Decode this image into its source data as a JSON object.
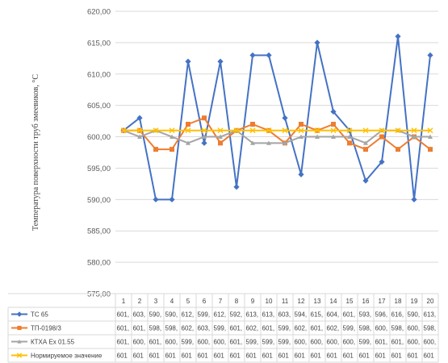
{
  "chart_data": {
    "type": "line",
    "title": "",
    "xlabel": "",
    "ylabel": "Температура поверхности труб змеевиков, °С",
    "ylim": [
      575,
      620
    ],
    "yticks": [
      "575,00",
      "580,00",
      "585,00",
      "590,00",
      "595,00",
      "600,00",
      "605,00",
      "610,00",
      "615,00",
      "620,00"
    ],
    "categories": [
      "1",
      "2",
      "3",
      "4",
      "5",
      "6",
      "7",
      "8",
      "9",
      "10",
      "11",
      "12",
      "13",
      "14",
      "15",
      "16",
      "17",
      "18",
      "19",
      "20"
    ],
    "grid": true,
    "legend": "data-table-left",
    "series": [
      {
        "name": "ТС 65",
        "color": "#4472c4",
        "marker": "diamond",
        "values": [
          601,
          603,
          590,
          590,
          612,
          599,
          612,
          592,
          613,
          613,
          603,
          594,
          615,
          604,
          601,
          593,
          596,
          616,
          590,
          613
        ],
        "table_labels": [
          "601,",
          "603,",
          "590,",
          "590,",
          "612,",
          "599,",
          "612,",
          "592,",
          "613,",
          "613,",
          "603,",
          "594,",
          "615,",
          "604,",
          "601,",
          "593,",
          "596,",
          "616,",
          "590,",
          "613,"
        ]
      },
      {
        "name": "ТП-0198/3",
        "color": "#ed7d31",
        "marker": "square",
        "values": [
          601,
          601,
          598,
          598,
          602,
          603,
          599,
          601,
          602,
          601,
          599,
          602,
          601,
          602,
          599,
          598,
          600,
          598,
          600,
          598
        ],
        "table_labels": [
          "601,",
          "601,",
          "598,",
          "598,",
          "602,",
          "603,",
          "599,",
          "601,",
          "602,",
          "601,",
          "599,",
          "602,",
          "601,",
          "602,",
          "599,",
          "598,",
          "600,",
          "598,",
          "600,",
          "598,"
        ]
      },
      {
        "name": "КТХА Ех 01.55",
        "color": "#a5a5a5",
        "marker": "triangle",
        "values": [
          601,
          600,
          601,
          600,
          599,
          600,
          600,
          601,
          599,
          599,
          599,
          600,
          600,
          600,
          600,
          599,
          601,
          601,
          600,
          600
        ],
        "table_labels": [
          "601,",
          "600,",
          "601,",
          "600,",
          "599,",
          "600,",
          "600,",
          "601,",
          "599,",
          "599,",
          "599,",
          "600,",
          "600,",
          "600,",
          "600,",
          "599,",
          "601,",
          "601,",
          "600,",
          "600,"
        ]
      },
      {
        "name": "Нормируемое значение",
        "color": "#ffc000",
        "marker": "cross",
        "values": [
          601,
          601,
          601,
          601,
          601,
          601,
          601,
          601,
          601,
          601,
          601,
          601,
          601,
          601,
          601,
          601,
          601,
          601,
          601,
          601
        ],
        "table_labels": [
          "601",
          "601",
          "601",
          "601",
          "601",
          "601",
          "601",
          "601",
          "601",
          "601",
          "601",
          "601",
          "601",
          "601",
          "601",
          "601",
          "601",
          "601",
          "601",
          "601"
        ]
      }
    ]
  }
}
